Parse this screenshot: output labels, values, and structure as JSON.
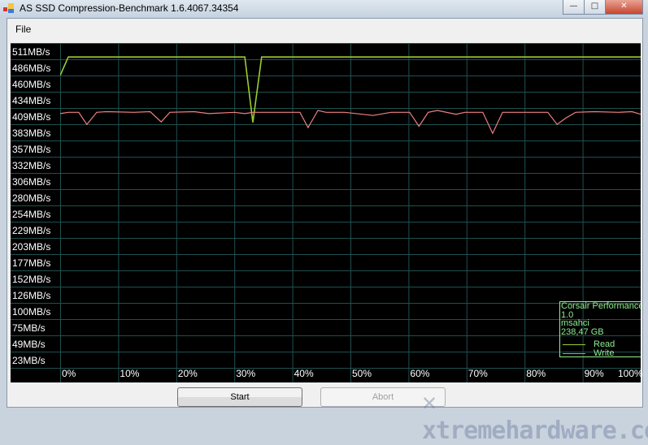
{
  "window": {
    "title": "AS SSD Compression-Benchmark 1.6.4067.34354",
    "minimize": "—",
    "maximize": "□",
    "close": "✕"
  },
  "menu": {
    "file": "File"
  },
  "chart_data": {
    "type": "line",
    "xlabel": "",
    "ylabel": "",
    "x_unit": "%",
    "xlim": [
      0,
      100
    ],
    "ylim": [
      0,
      511
    ],
    "grid": true,
    "y_tick_labels": [
      "511MB/s",
      "486MB/s",
      "460MB/s",
      "434MB/s",
      "409MB/s",
      "383MB/s",
      "357MB/s",
      "332MB/s",
      "306MB/s",
      "280MB/s",
      "254MB/s",
      "229MB/s",
      "203MB/s",
      "177MB/s",
      "152MB/s",
      "126MB/s",
      "100MB/s",
      "75MB/s",
      "49MB/s",
      "23MB/s"
    ],
    "x_tick_labels": [
      "0%",
      "10%",
      "20%",
      "30%",
      "40%",
      "50%",
      "60%",
      "70%",
      "80%",
      "90%",
      "100%"
    ],
    "legend_position": "bottom-right",
    "series": [
      {
        "name": "Read",
        "color": "#9acd32",
        "x": [
          0,
          1.4,
          31.8,
          33.2,
          34.7,
          100
        ],
        "y": [
          460,
          489,
          489,
          386,
          489,
          489
        ]
      },
      {
        "name": "Write",
        "color": "#f08080",
        "x": [
          0,
          1.4,
          3.2,
          4.6,
          6.3,
          8.0,
          12.7,
          15.5,
          17.4,
          18.9,
          23.1,
          25.6,
          30.0,
          31.8,
          33.2,
          39.8,
          41.3,
          42.7,
          44.4,
          45.8,
          49.0,
          53.9,
          57.0,
          60.2,
          61.8,
          63.4,
          65.0,
          68.2,
          69.7,
          72.8,
          74.5,
          76.2,
          80.8,
          84.0,
          85.6,
          87.1,
          88.8,
          92.0,
          96.2,
          98.5,
          100
        ],
        "y": [
          400,
          402,
          402,
          383,
          402,
          403,
          402,
          403,
          387,
          402,
          403,
          400,
          402,
          400,
          402,
          402,
          402,
          378,
          405,
          402,
          402,
          397,
          402,
          402,
          380,
          402,
          405,
          399,
          402,
          402,
          369,
          402,
          402,
          402,
          383,
          393,
          402,
          403,
          402,
          403,
          399
        ]
      }
    ]
  },
  "legend": {
    "device": "Corsair Performance",
    "firmware": "1.0",
    "driver": "msahci",
    "capacity": "238,47 GB",
    "read_label": "Read",
    "write_label": "Write"
  },
  "buttons": {
    "start": "Start",
    "abort": "Abort"
  },
  "watermark": "xtremehardware.com"
}
